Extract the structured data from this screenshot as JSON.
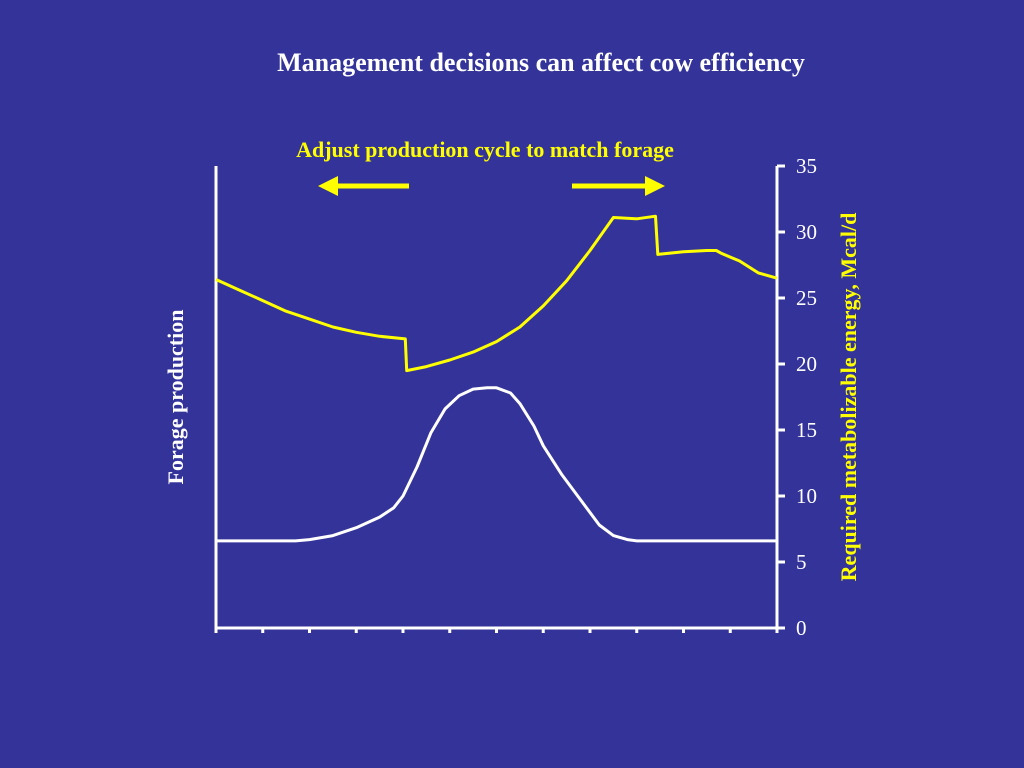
{
  "title": "Management decisions can affect cow efficiency",
  "annotation": "Adjust production cycle to match forage",
  "colors": {
    "background": "#333399",
    "forage": "#ffffff",
    "energy": "#ffff00",
    "arrows": "#ffff00"
  },
  "chart_data": {
    "type": "line",
    "title": "Management decisions can affect cow efficiency",
    "ylabel_left": "Forage production",
    "ylabel_right": "Required metabolizable energy, Mcal/d",
    "xlim": [
      0,
      12
    ],
    "ylim": [
      0,
      35
    ],
    "yticks": [
      0,
      5,
      10,
      15,
      20,
      25,
      30,
      35
    ],
    "xticks": [
      0,
      1,
      2,
      3,
      4,
      5,
      6,
      7,
      8,
      9,
      10,
      11,
      12
    ],
    "grid": false,
    "series": [
      {
        "name": "Required metabolizable energy",
        "axis": "right",
        "x": [
          0,
          0.5,
          1,
          1.5,
          2,
          2.5,
          3,
          3.5,
          4.05,
          4.08,
          4.5,
          5,
          5.5,
          6,
          6.5,
          7,
          7.5,
          8,
          8.5,
          9,
          9.4,
          9.45,
          10,
          10.5,
          10.7,
          10.8,
          11,
          11.2,
          11.6,
          12
        ],
        "y": [
          26.4,
          25.6,
          24.8,
          24.0,
          23.4,
          22.8,
          22.4,
          22.1,
          21.9,
          19.5,
          19.8,
          20.3,
          20.9,
          21.7,
          22.8,
          24.4,
          26.3,
          28.6,
          31.1,
          31.0,
          31.2,
          28.3,
          28.5,
          28.6,
          28.6,
          28.4,
          28.1,
          27.8,
          26.9,
          26.5
        ]
      },
      {
        "name": "Forage production",
        "axis": "left",
        "x": [
          0,
          1,
          1.7,
          2,
          2.5,
          3,
          3.5,
          3.8,
          4,
          4.3,
          4.6,
          4.9,
          5.2,
          5.5,
          5.8,
          6.0,
          6.3,
          6.5,
          6.8,
          7.0,
          7.4,
          7.8,
          8.2,
          8.5,
          8.8,
          9,
          10,
          11,
          12
        ],
        "y": [
          6.6,
          6.6,
          6.6,
          6.7,
          7.0,
          7.6,
          8.4,
          9.1,
          10.0,
          12.2,
          14.8,
          16.6,
          17.6,
          18.1,
          18.2,
          18.2,
          17.8,
          17.0,
          15.3,
          13.8,
          11.6,
          9.7,
          7.8,
          7.0,
          6.7,
          6.6,
          6.6,
          6.6,
          6.6
        ]
      }
    ]
  }
}
